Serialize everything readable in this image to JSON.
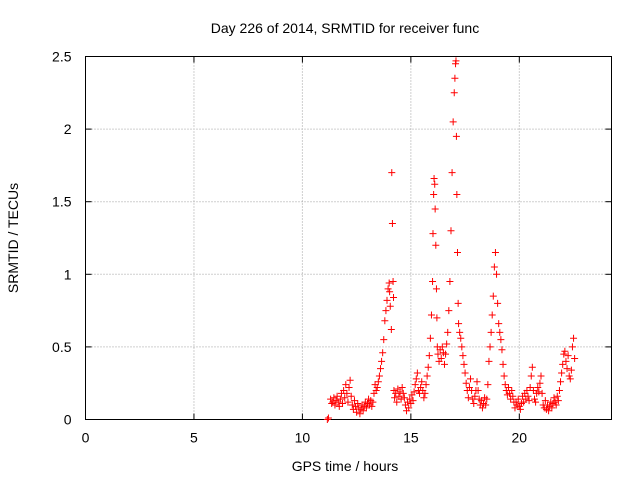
{
  "chart_data": {
    "type": "scatter",
    "title": "Day 226 of 2014, SRMTID for receiver func",
    "xlabel": "GPS time / hours",
    "ylabel": "SRMTID / TECUs",
    "xlim": [
      0,
      24.25
    ],
    "ylim": [
      0,
      2.5
    ],
    "xticks": [
      0,
      5,
      10,
      15,
      20
    ],
    "xtick_labels": [
      "0",
      "5",
      "10",
      "15",
      "20"
    ],
    "yticks": [
      0,
      0.5,
      1,
      1.5,
      2,
      2.5
    ],
    "ytick_labels": [
      "0",
      "0.5",
      "1",
      "1.5",
      "2",
      "2.5"
    ],
    "grid": true,
    "marker": "+",
    "color": "#ff0000",
    "series": [
      {
        "name": "SRMTID",
        "points": [
          [
            11.15,
            0.0
          ],
          [
            11.2,
            0.01
          ],
          [
            11.3,
            0.14
          ],
          [
            11.35,
            0.11
          ],
          [
            11.4,
            0.12
          ],
          [
            11.45,
            0.15
          ],
          [
            11.5,
            0.1
          ],
          [
            11.55,
            0.13
          ],
          [
            11.6,
            0.16
          ],
          [
            11.65,
            0.12
          ],
          [
            11.7,
            0.09
          ],
          [
            11.75,
            0.14
          ],
          [
            11.8,
            0.18
          ],
          [
            11.85,
            0.11
          ],
          [
            11.9,
            0.2
          ],
          [
            11.95,
            0.15
          ],
          [
            12.0,
            0.24
          ],
          [
            12.05,
            0.18
          ],
          [
            12.1,
            0.12
          ],
          [
            12.15,
            0.22
          ],
          [
            12.2,
            0.27
          ],
          [
            12.25,
            0.16
          ],
          [
            12.3,
            0.1
          ],
          [
            12.35,
            0.07
          ],
          [
            12.4,
            0.13
          ],
          [
            12.45,
            0.09
          ],
          [
            12.5,
            0.05
          ],
          [
            12.55,
            0.11
          ],
          [
            12.6,
            0.08
          ],
          [
            12.65,
            0.04
          ],
          [
            12.7,
            0.07
          ],
          [
            12.75,
            0.1
          ],
          [
            12.8,
            0.06
          ],
          [
            12.85,
            0.09
          ],
          [
            12.9,
            0.12
          ],
          [
            12.95,
            0.08
          ],
          [
            13.0,
            0.11
          ],
          [
            13.05,
            0.14
          ],
          [
            13.1,
            0.1
          ],
          [
            13.15,
            0.13
          ],
          [
            13.2,
            0.09
          ],
          [
            13.25,
            0.12
          ],
          [
            13.3,
            0.18
          ],
          [
            13.35,
            0.24
          ],
          [
            13.4,
            0.2
          ],
          [
            13.45,
            0.22
          ],
          [
            13.5,
            0.26
          ],
          [
            13.55,
            0.3
          ],
          [
            13.6,
            0.35
          ],
          [
            13.65,
            0.4
          ],
          [
            13.7,
            0.46
          ],
          [
            13.75,
            0.55
          ],
          [
            13.8,
            0.68
          ],
          [
            13.85,
            0.75
          ],
          [
            13.9,
            0.82
          ],
          [
            13.95,
            0.9
          ],
          [
            14.0,
            0.94
          ],
          [
            14.02,
            0.88
          ],
          [
            14.05,
            0.78
          ],
          [
            14.1,
            0.62
          ],
          [
            14.12,
            1.7
          ],
          [
            14.15,
            1.35
          ],
          [
            14.18,
            0.95
          ],
          [
            14.2,
            0.84
          ],
          [
            14.22,
            0.2
          ],
          [
            14.25,
            0.15
          ],
          [
            14.3,
            0.18
          ],
          [
            14.35,
            0.12
          ],
          [
            14.4,
            0.21
          ],
          [
            14.45,
            0.16
          ],
          [
            14.5,
            0.19
          ],
          [
            14.55,
            0.14
          ],
          [
            14.6,
            0.22
          ],
          [
            14.65,
            0.18
          ],
          [
            14.7,
            0.15
          ],
          [
            14.75,
            0.1
          ],
          [
            14.8,
            0.06
          ],
          [
            14.85,
            0.12
          ],
          [
            14.9,
            0.08
          ],
          [
            14.95,
            0.14
          ],
          [
            15.0,
            0.11
          ],
          [
            15.05,
            0.17
          ],
          [
            15.1,
            0.13
          ],
          [
            15.15,
            0.19
          ],
          [
            15.2,
            0.24
          ],
          [
            15.25,
            0.28
          ],
          [
            15.3,
            0.32
          ],
          [
            15.35,
            0.2
          ],
          [
            15.4,
            0.18
          ],
          [
            15.45,
            0.22
          ],
          [
            15.5,
            0.26
          ],
          [
            15.55,
            0.2
          ],
          [
            15.6,
            0.15
          ],
          [
            15.65,
            0.18
          ],
          [
            15.7,
            0.24
          ],
          [
            15.75,
            0.3
          ],
          [
            15.8,
            0.36
          ],
          [
            15.85,
            0.44
          ],
          [
            15.9,
            0.56
          ],
          [
            15.95,
            0.72
          ],
          [
            16.0,
            0.95
          ],
          [
            16.02,
            1.28
          ],
          [
            16.05,
            1.55
          ],
          [
            16.07,
            1.66
          ],
          [
            16.1,
            1.62
          ],
          [
            16.12,
            1.45
          ],
          [
            16.15,
            1.2
          ],
          [
            16.18,
            0.9
          ],
          [
            16.2,
            0.7
          ],
          [
            16.22,
            0.5
          ],
          [
            16.25,
            0.45
          ],
          [
            16.3,
            0.4
          ],
          [
            16.35,
            0.48
          ],
          [
            16.4,
            0.42
          ],
          [
            16.45,
            0.5
          ],
          [
            16.5,
            0.46
          ],
          [
            16.55,
            0.38
          ],
          [
            16.6,
            0.45
          ],
          [
            16.65,
            0.52
          ],
          [
            16.7,
            0.6
          ],
          [
            16.75,
            0.75
          ],
          [
            16.8,
            0.95
          ],
          [
            16.85,
            1.3
          ],
          [
            16.9,
            1.7
          ],
          [
            16.95,
            2.05
          ],
          [
            17.0,
            2.25
          ],
          [
            17.03,
            2.35
          ],
          [
            17.06,
            2.45
          ],
          [
            17.08,
            2.47
          ],
          [
            17.1,
            1.95
          ],
          [
            17.12,
            1.55
          ],
          [
            17.15,
            1.15
          ],
          [
            17.18,
            0.8
          ],
          [
            17.2,
            0.66
          ],
          [
            17.25,
            0.6
          ],
          [
            17.3,
            0.56
          ],
          [
            17.35,
            0.5
          ],
          [
            17.4,
            0.44
          ],
          [
            17.45,
            0.38
          ],
          [
            17.5,
            0.32
          ],
          [
            17.55,
            0.25
          ],
          [
            17.6,
            0.2
          ],
          [
            17.65,
            0.15
          ],
          [
            17.7,
            0.22
          ],
          [
            17.75,
            0.28
          ],
          [
            17.8,
            0.2
          ],
          [
            17.85,
            0.14
          ],
          [
            17.9,
            0.11
          ],
          [
            17.95,
            0.16
          ],
          [
            18.0,
            0.2
          ],
          [
            18.05,
            0.26
          ],
          [
            18.1,
            0.2
          ],
          [
            18.15,
            0.14
          ],
          [
            18.2,
            0.1
          ],
          [
            18.25,
            0.13
          ],
          [
            18.3,
            0.08
          ],
          [
            18.35,
            0.11
          ],
          [
            18.4,
            0.15
          ],
          [
            18.45,
            0.1
          ],
          [
            18.5,
            0.14
          ],
          [
            18.55,
            0.24
          ],
          [
            18.6,
            0.4
          ],
          [
            18.65,
            0.5
          ],
          [
            18.7,
            0.6
          ],
          [
            18.75,
            0.72
          ],
          [
            18.8,
            0.85
          ],
          [
            18.85,
            1.05
          ],
          [
            18.9,
            1.15
          ],
          [
            18.95,
            1.0
          ],
          [
            19.0,
            0.8
          ],
          [
            19.05,
            0.66
          ],
          [
            19.1,
            0.6
          ],
          [
            19.15,
            0.55
          ],
          [
            19.2,
            0.48
          ],
          [
            19.25,
            0.38
          ],
          [
            19.3,
            0.3
          ],
          [
            19.35,
            0.24
          ],
          [
            19.4,
            0.2
          ],
          [
            19.45,
            0.17
          ],
          [
            19.5,
            0.22
          ],
          [
            19.55,
            0.18
          ],
          [
            19.6,
            0.14
          ],
          [
            19.65,
            0.2
          ],
          [
            19.7,
            0.16
          ],
          [
            19.75,
            0.12
          ],
          [
            19.8,
            0.08
          ],
          [
            19.85,
            0.12
          ],
          [
            19.9,
            0.1
          ],
          [
            19.95,
            0.14
          ],
          [
            20.0,
            0.09
          ],
          [
            20.05,
            0.07
          ],
          [
            20.1,
            0.11
          ],
          [
            20.15,
            0.16
          ],
          [
            20.2,
            0.12
          ],
          [
            20.25,
            0.18
          ],
          [
            20.3,
            0.14
          ],
          [
            20.35,
            0.2
          ],
          [
            20.4,
            0.16
          ],
          [
            20.45,
            0.13
          ],
          [
            20.5,
            0.22
          ],
          [
            20.55,
            0.3
          ],
          [
            20.6,
            0.36
          ],
          [
            20.65,
            0.2
          ],
          [
            20.7,
            0.14
          ],
          [
            20.75,
            0.12
          ],
          [
            20.8,
            0.18
          ],
          [
            20.85,
            0.22
          ],
          [
            20.9,
            0.19
          ],
          [
            20.95,
            0.25
          ],
          [
            21.0,
            0.3
          ],
          [
            21.05,
            0.18
          ],
          [
            21.1,
            0.1
          ],
          [
            21.15,
            0.08
          ],
          [
            21.2,
            0.13
          ],
          [
            21.25,
            0.07
          ],
          [
            21.3,
            0.1
          ],
          [
            21.35,
            0.06
          ],
          [
            21.4,
            0.09
          ],
          [
            21.45,
            0.12
          ],
          [
            21.5,
            0.08
          ],
          [
            21.55,
            0.11
          ],
          [
            21.6,
            0.15
          ],
          [
            21.65,
            0.12
          ],
          [
            21.7,
            0.1
          ],
          [
            21.75,
            0.16
          ],
          [
            21.8,
            0.13
          ],
          [
            21.85,
            0.2
          ],
          [
            21.9,
            0.26
          ],
          [
            21.95,
            0.32
          ],
          [
            22.0,
            0.38
          ],
          [
            22.05,
            0.45
          ],
          [
            22.1,
            0.47
          ],
          [
            22.15,
            0.4
          ],
          [
            22.2,
            0.35
          ],
          [
            22.25,
            0.44
          ],
          [
            22.3,
            0.3
          ],
          [
            22.35,
            0.28
          ],
          [
            22.4,
            0.34
          ],
          [
            22.45,
            0.5
          ],
          [
            22.5,
            0.56
          ],
          [
            22.55,
            0.42
          ]
        ]
      }
    ]
  }
}
